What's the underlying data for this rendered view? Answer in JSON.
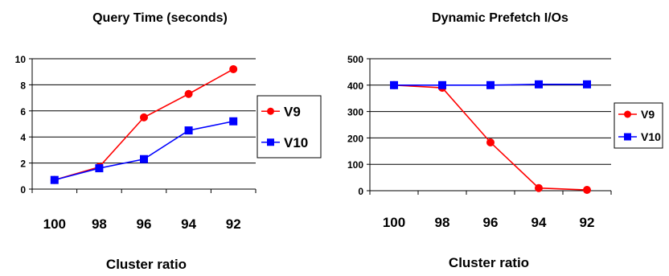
{
  "chart_data": [
    {
      "type": "line",
      "title": "Query Time (seconds)",
      "xlabel": "Cluster ratio",
      "ylabel": "",
      "categories": [
        "100",
        "98",
        "96",
        "94",
        "92"
      ],
      "ylim": [
        0,
        10
      ],
      "yticks": [
        0,
        2,
        4,
        6,
        8,
        10
      ],
      "grid": true,
      "legend": "right",
      "series": [
        {
          "name": "V9",
          "color": "#FF0000",
          "marker": "circle",
          "values": [
            0.7,
            1.7,
            5.5,
            7.3,
            9.2
          ]
        },
        {
          "name": "V10",
          "color": "#0000FF",
          "marker": "square",
          "values": [
            0.7,
            1.6,
            2.3,
            4.5,
            5.2
          ]
        }
      ]
    },
    {
      "type": "line",
      "title": "Dynamic Prefetch I/Os",
      "xlabel": "Cluster ratio",
      "ylabel": "",
      "categories": [
        "100",
        "98",
        "96",
        "94",
        "92"
      ],
      "ylim": [
        0,
        500
      ],
      "yticks": [
        0,
        100,
        200,
        300,
        400,
        500
      ],
      "grid": true,
      "legend": "right",
      "series": [
        {
          "name": "V9",
          "color": "#FF0000",
          "marker": "circle",
          "values": [
            400,
            390,
            183,
            10,
            3
          ]
        },
        {
          "name": "V10",
          "color": "#0000FF",
          "marker": "square",
          "values": [
            400,
            400,
            400,
            403,
            403
          ]
        }
      ]
    }
  ]
}
